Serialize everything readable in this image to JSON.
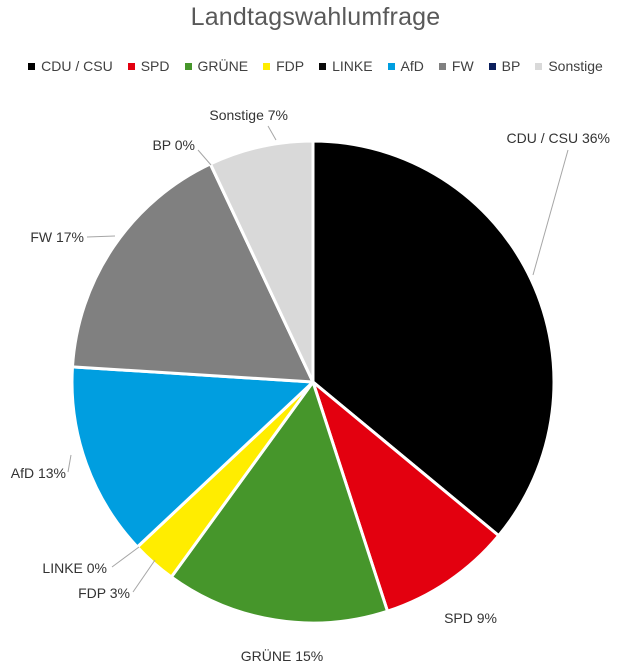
{
  "chart_data": {
    "type": "pie",
    "title": "Landtagswahlumfrage",
    "legend_position": "top",
    "slices": [
      {
        "name": "CDU / CSU",
        "value": 36,
        "label": "CDU / CSU 36%",
        "color": "#000000"
      },
      {
        "name": "SPD",
        "value": 9,
        "label": "SPD 9%",
        "color": "#e3000f"
      },
      {
        "name": "GRÜNE",
        "value": 15,
        "label": "GRÜNE 15%",
        "color": "#46962b"
      },
      {
        "name": "FDP",
        "value": 3,
        "label": "FDP 3%",
        "color": "#ffed00"
      },
      {
        "name": "LINKE",
        "value": 0,
        "label": "LINKE 0%",
        "color": "#0a0a0a"
      },
      {
        "name": "AfD",
        "value": 13,
        "label": "AfD 13%",
        "color": "#009ee0"
      },
      {
        "name": "FW",
        "value": 17,
        "label": "FW 17%",
        "color": "#808080"
      },
      {
        "name": "BP",
        "value": 0,
        "label": "BP 0%",
        "color": "#0b1f5c"
      },
      {
        "name": "Sonstige",
        "value": 7,
        "label": "Sonstige 7%",
        "color": "#d9d9d9"
      }
    ]
  }
}
